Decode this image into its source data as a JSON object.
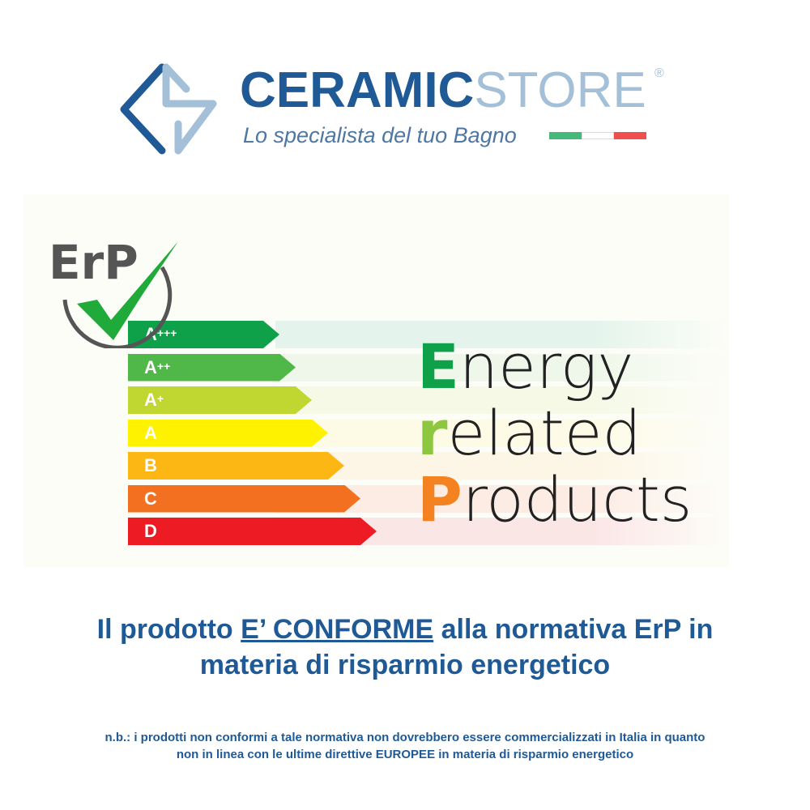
{
  "logo": {
    "brand_part1": "CERAMIC",
    "brand_part2": "STORE",
    "registered": "®",
    "tagline": "Lo specialista del tuo Bagno",
    "flag_colors": [
      "#45b97c",
      "#ffffff",
      "#f0504d"
    ]
  },
  "erp_badge": {
    "text": "ErP"
  },
  "energy_classes": [
    {
      "letter": "A",
      "sup": "+++",
      "color": "#0fa04a",
      "stripe": "#e4f4ec"
    },
    {
      "letter": "A",
      "sup": "++",
      "color": "#4fb848",
      "stripe": "#eef7ea"
    },
    {
      "letter": "A",
      "sup": "+",
      "color": "#bfd730",
      "stripe": "#f5f9e6"
    },
    {
      "letter": "A",
      "sup": "",
      "color": "#fff200",
      "stripe": "#fdfbe6"
    },
    {
      "letter": "B",
      "sup": "",
      "color": "#fdb714",
      "stripe": "#fdf6e6"
    },
    {
      "letter": "C",
      "sup": "",
      "color": "#f37021",
      "stripe": "#fcece4"
    },
    {
      "letter": "D",
      "sup": "",
      "color": "#ed1c24",
      "stripe": "#fbe6e6"
    }
  ],
  "erp_words": [
    {
      "initial": "E",
      "rest": "nergy",
      "color": "#0fa04a"
    },
    {
      "initial": "r",
      "rest": "elated",
      "color": "#8dc63f"
    },
    {
      "initial": "P",
      "rest": "roducts",
      "color": "#f58220"
    }
  ],
  "statement": {
    "pre": "Il prodotto ",
    "highlight": "E’ CONFORME",
    "post": " alla normativa ErP in",
    "line2": "materia di risparmio energetico"
  },
  "note": {
    "line1": "n.b.: i prodotti non conformi a tale normativa non dovrebbero essere commercializzati in Italia in quanto",
    "line2_pre": "non in linea con le ultime direttive ",
    "line2_bold": "EUROPEE",
    "line2_post": " in materia di risparmio energetico"
  }
}
